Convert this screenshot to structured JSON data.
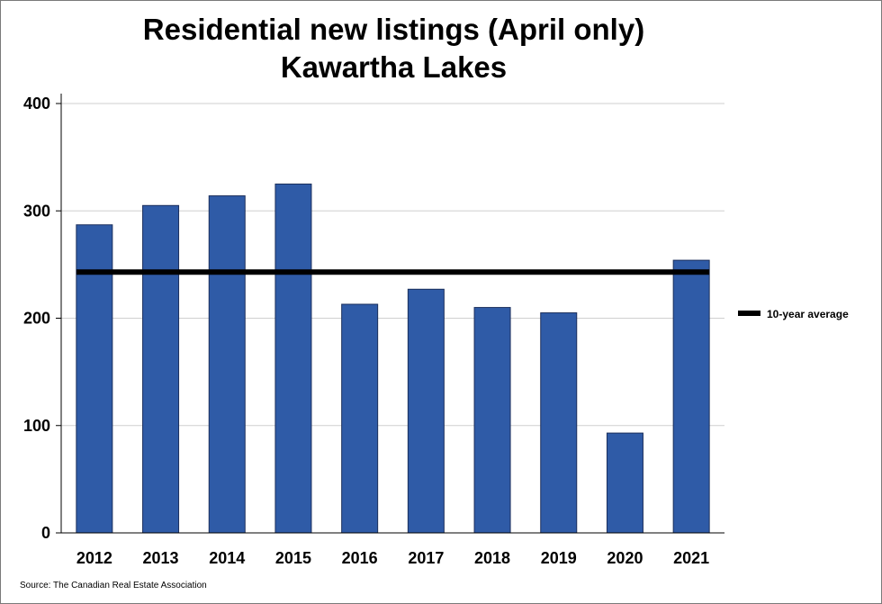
{
  "chart_data": {
    "type": "bar",
    "title": "Residential new listings (April only)",
    "subtitle": "Kawartha Lakes",
    "categories": [
      "2012",
      "2013",
      "2014",
      "2015",
      "2016",
      "2017",
      "2018",
      "2019",
      "2020",
      "2021"
    ],
    "series": [
      {
        "values": [
          287,
          305,
          314,
          325,
          213,
          227,
          210,
          205,
          93,
          254
        ],
        "color": "#2f5ba7"
      }
    ],
    "reference_line": {
      "name": "10-year average",
      "value": 243,
      "color": "#000000"
    },
    "ylim": [
      0,
      400
    ],
    "yticks": [
      "0",
      "100",
      "200",
      "300",
      "400"
    ],
    "grid": true,
    "legend_position": "right",
    "source": "Source: The Canadian Real Estate Association"
  }
}
